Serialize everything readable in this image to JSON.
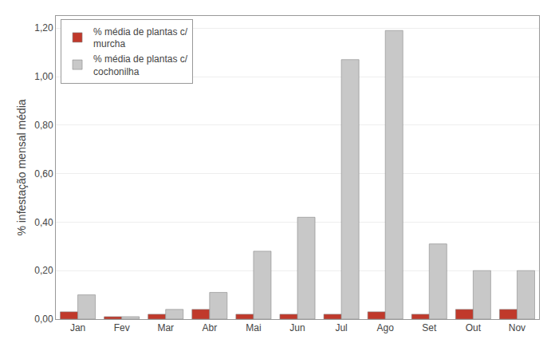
{
  "chart_data": {
    "type": "bar",
    "categories": [
      "Jan",
      "Fev",
      "Mar",
      "Abr",
      "Mai",
      "Jun",
      "Jul",
      "Ago",
      "Set",
      "Out",
      "Nov"
    ],
    "series": [
      {
        "name": "% média de plantas c/\nmurcha",
        "color": "#C0392B",
        "values": [
          0.03,
          0.01,
          0.02,
          0.04,
          0.02,
          0.02,
          0.02,
          0.03,
          0.02,
          0.04,
          0.04
        ]
      },
      {
        "name": "% média de plantas c/\ncochonilha",
        "color": "#C8C8C8",
        "values": [
          0.1,
          0.01,
          0.04,
          0.11,
          0.28,
          0.42,
          1.07,
          1.19,
          0.31,
          0.2,
          0.2
        ]
      }
    ],
    "ylabel": "% infestação mensal média",
    "ylim": [
      0,
      1.25
    ],
    "yticks": [
      {
        "value": 0.0,
        "label": "0,00"
      },
      {
        "value": 0.2,
        "label": "0,20"
      },
      {
        "value": 0.4,
        "label": "0,40"
      },
      {
        "value": 0.6,
        "label": "0,60"
      },
      {
        "value": 0.8,
        "label": "0,80"
      },
      {
        "value": 1.0,
        "label": "1,00"
      },
      {
        "value": 1.2,
        "label": "1,20"
      }
    ],
    "grid": true,
    "legend": "upper left"
  }
}
